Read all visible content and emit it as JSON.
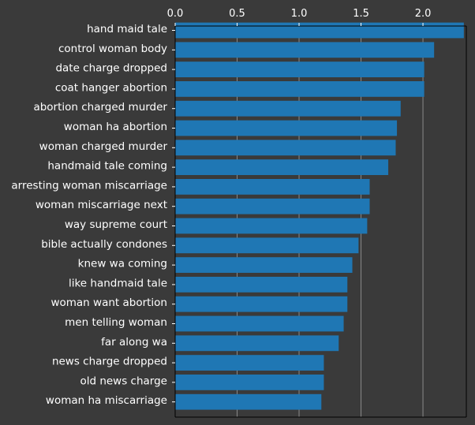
{
  "colors": {
    "background": "#3a3a3a",
    "plot_background": "#3a3a3a",
    "bar": "#1f77b4",
    "grid": "#8a8a8a",
    "axis": "#000000",
    "text": "#ffffff"
  },
  "chart_data": {
    "type": "bar",
    "orientation": "horizontal",
    "title": "",
    "xlabel": "",
    "ylabel": "",
    "xlim": [
      0,
      2.35
    ],
    "x_ticks": [
      "0.0",
      "0.5",
      "1.0",
      "1.5",
      "2.0"
    ],
    "x_axis_position": "top",
    "grid": "vertical",
    "categories": [
      "hand maid tale",
      "control woman body",
      "date charge dropped",
      "coat hanger abortion",
      "abortion charged murder",
      "woman ha abortion",
      "woman charged murder",
      "handmaid tale coming",
      "arresting woman miscarriage",
      "woman miscarriage next",
      "way supreme court",
      "bible actually condones",
      "knew wa coming",
      "like handmaid tale",
      "woman want abortion",
      "men telling woman",
      "far along wa",
      "news charge dropped",
      "old news charge",
      "woman ha miscarriage"
    ],
    "values": [
      2.33,
      2.09,
      2.01,
      2.01,
      1.82,
      1.79,
      1.78,
      1.72,
      1.57,
      1.57,
      1.55,
      1.48,
      1.43,
      1.39,
      1.39,
      1.36,
      1.32,
      1.2,
      1.2,
      1.18
    ]
  }
}
